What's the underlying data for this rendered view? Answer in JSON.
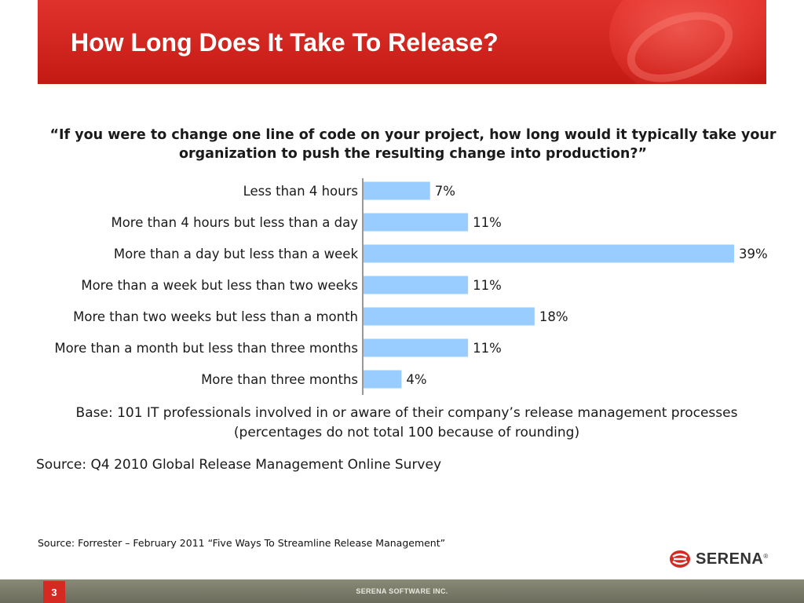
{
  "slide": {
    "title": "How Long Does It Take To Release?",
    "page_number": "3",
    "company": "SERENA SOFTWARE INC.",
    "logo_text": "SERENA",
    "logo_mark": "®"
  },
  "question": {
    "line1": "“If you were to change one line of code on your project, how long would it typically take your",
    "line2": "organization to push the resulting change into production?”"
  },
  "base_note": {
    "line1": "Base: 101 IT professionals involved in or aware of their company’s release management processes",
    "line2": "(percentages do not total 100 because of rounding)"
  },
  "survey_source": "Source: Q4 2010 Global Release Management Online Survey",
  "footnote": "Source: Forrester – February 2011 “Five Ways To Streamline Release Management”",
  "colors": {
    "bar": "#99ccff",
    "banner": "#d42a22",
    "text": "#1a1a1a"
  },
  "chart_data": {
    "type": "bar",
    "orientation": "horizontal",
    "categories": [
      "Less than 4 hours",
      "More than 4 hours but less than a day",
      "More than a day but less than a week",
      "More than a week but less than two weeks",
      "More than two weeks but less than a month",
      "More than a month but less than three months",
      "More than three months"
    ],
    "values": [
      7,
      11,
      39,
      11,
      18,
      11,
      4
    ],
    "value_labels": [
      "7%",
      "11%",
      "39%",
      "11%",
      "18%",
      "11%",
      "4%"
    ],
    "unit": "%",
    "xlim": [
      0,
      39
    ],
    "grid": false,
    "legend": false
  }
}
